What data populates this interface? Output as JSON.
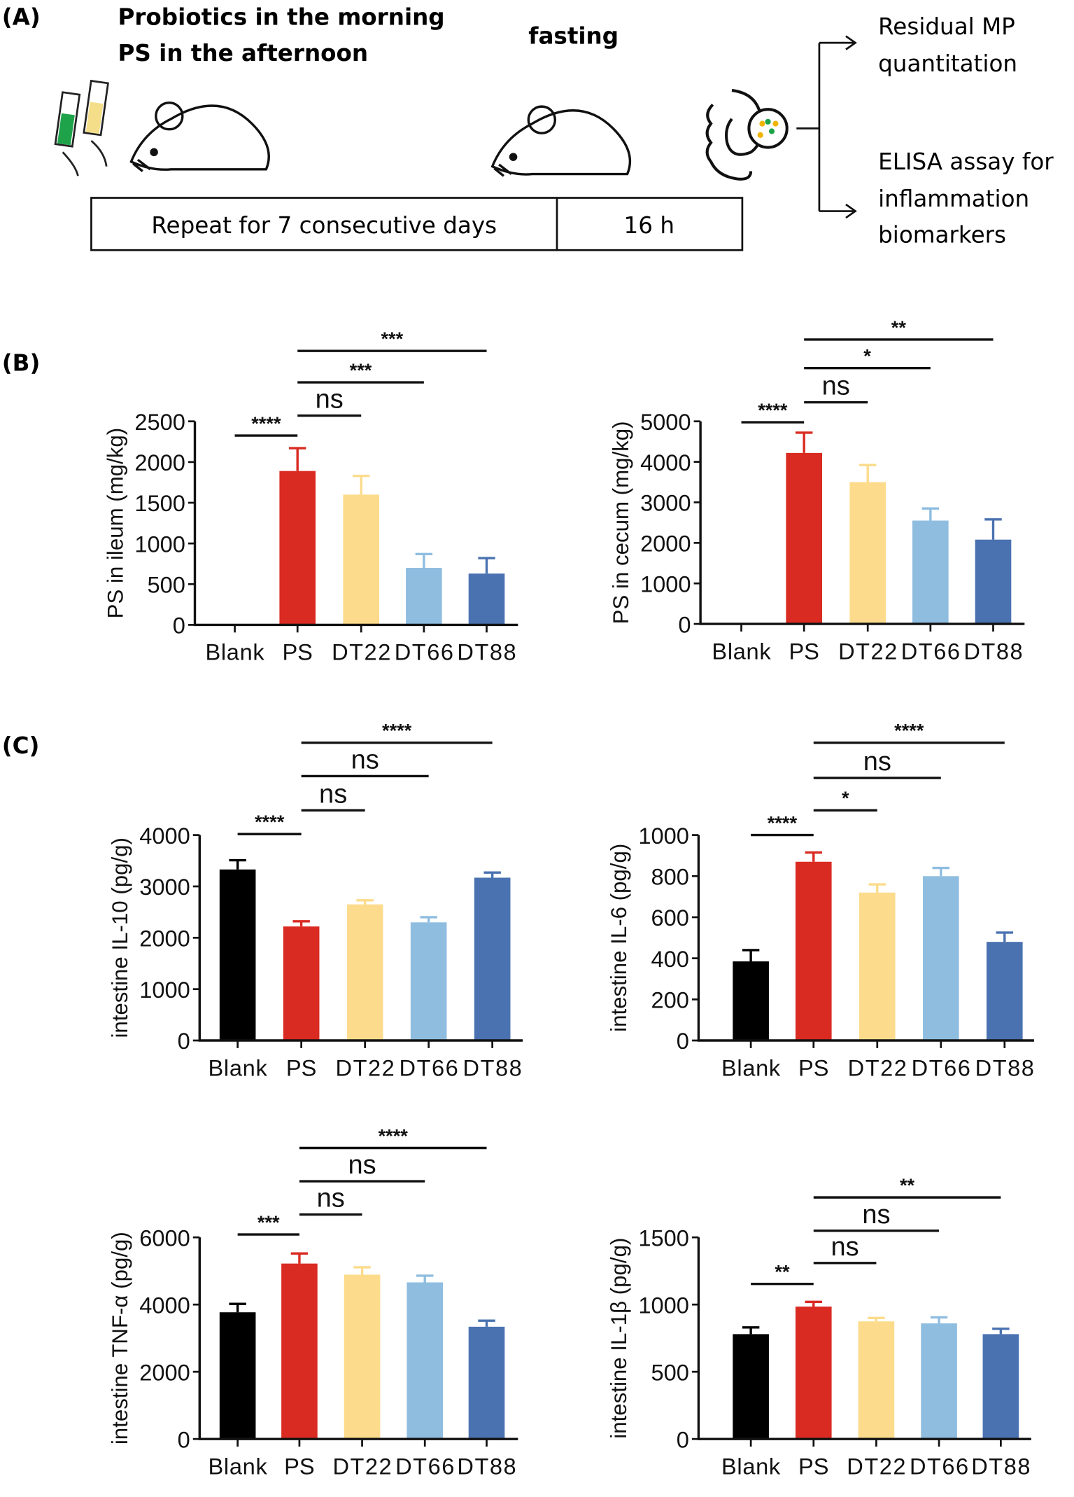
{
  "panel_a": {
    "label": "(A)",
    "line1": "Probiotics in the morning",
    "line2": "PS in the afternoon",
    "fasting": "fasting",
    "repeat": "Repeat for 7 consecutive days",
    "hours": "16 h",
    "out1a": "Residual MP",
    "out1b": "quantitation",
    "out2a": "ELISA assay for",
    "out2b": "inflammation",
    "out2c": "biomarkers"
  },
  "panel_b": {
    "label": "(B)"
  },
  "panel_c": {
    "label": "(C)"
  },
  "colors": {
    "Blank": "#000000",
    "PS": "#d92b22",
    "DT22": "#fcdc8c",
    "DT66": "#8fbde0",
    "DT88": "#4a72b0"
  },
  "chart_data": [
    {
      "type": "bar",
      "panel": "B",
      "ylabel": "PS in ileum (mg/kg)",
      "categories": [
        "Blank",
        "PS",
        "DT22",
        "DT66",
        "DT88"
      ],
      "values": [
        0,
        1890,
        1600,
        700,
        630
      ],
      "errors": [
        0,
        280,
        230,
        170,
        190
      ],
      "ylim": [
        0,
        2500
      ],
      "yticks": [
        0,
        500,
        1000,
        1500,
        2000,
        2500
      ],
      "comparisons": [
        {
          "from": 0,
          "to": 1,
          "label": "****"
        },
        {
          "from": 1,
          "to": 2,
          "label": "ns"
        },
        {
          "from": 1,
          "to": 3,
          "label": "***"
        },
        {
          "from": 1,
          "to": 4,
          "label": "***"
        }
      ]
    },
    {
      "type": "bar",
      "panel": "B",
      "ylabel": "PS in cecum (mg/kg)",
      "categories": [
        "Blank",
        "PS",
        "DT22",
        "DT66",
        "DT88"
      ],
      "values": [
        0,
        4220,
        3500,
        2550,
        2080
      ],
      "errors": [
        0,
        500,
        420,
        300,
        500
      ],
      "ylim": [
        0,
        5000
      ],
      "yticks": [
        0,
        1000,
        2000,
        3000,
        4000,
        5000
      ],
      "comparisons": [
        {
          "from": 0,
          "to": 1,
          "label": "****"
        },
        {
          "from": 1,
          "to": 2,
          "label": "ns"
        },
        {
          "from": 1,
          "to": 3,
          "label": "*"
        },
        {
          "from": 1,
          "to": 4,
          "label": "**"
        }
      ]
    },
    {
      "type": "bar",
      "panel": "C",
      "ylabel": "intestine IL-10 (pg/g)",
      "categories": [
        "Blank",
        "PS",
        "DT22",
        "DT66",
        "DT88"
      ],
      "values": [
        3330,
        2220,
        2650,
        2300,
        3170
      ],
      "errors": [
        180,
        100,
        80,
        100,
        100
      ],
      "ylim": [
        0,
        4000
      ],
      "yticks": [
        0,
        1000,
        2000,
        3000,
        4000
      ],
      "comparisons": [
        {
          "from": 0,
          "to": 1,
          "label": "****"
        },
        {
          "from": 1,
          "to": 2,
          "label": "ns"
        },
        {
          "from": 1,
          "to": 3,
          "label": "ns"
        },
        {
          "from": 1,
          "to": 4,
          "label": "****"
        }
      ]
    },
    {
      "type": "bar",
      "panel": "C",
      "ylabel": "intestine IL-6 (pg/g)",
      "categories": [
        "Blank",
        "PS",
        "DT22",
        "DT66",
        "DT88"
      ],
      "values": [
        385,
        870,
        720,
        800,
        480
      ],
      "errors": [
        55,
        45,
        40,
        40,
        45
      ],
      "ylim": [
        0,
        1000
      ],
      "yticks": [
        0,
        200,
        400,
        600,
        800,
        1000
      ],
      "comparisons": [
        {
          "from": 0,
          "to": 1,
          "label": "****"
        },
        {
          "from": 1,
          "to": 2,
          "label": "*"
        },
        {
          "from": 1,
          "to": 3,
          "label": "ns"
        },
        {
          "from": 1,
          "to": 4,
          "label": "****"
        }
      ]
    },
    {
      "type": "bar",
      "panel": "C",
      "ylabel": "intestine TNF-α (pg/g)",
      "categories": [
        "Blank",
        "PS",
        "DT22",
        "DT66",
        "DT88"
      ],
      "values": [
        3770,
        5220,
        4890,
        4660,
        3340
      ],
      "errors": [
        250,
        300,
        220,
        200,
        180
      ],
      "ylim": [
        0,
        6000
      ],
      "yticks": [
        0,
        2000,
        4000,
        6000
      ],
      "comparisons": [
        {
          "from": 0,
          "to": 1,
          "label": "***"
        },
        {
          "from": 1,
          "to": 2,
          "label": "ns"
        },
        {
          "from": 1,
          "to": 3,
          "label": "ns"
        },
        {
          "from": 1,
          "to": 4,
          "label": "****"
        }
      ]
    },
    {
      "type": "bar",
      "panel": "C",
      "ylabel": "intestine IL-1β (pg/g)",
      "categories": [
        "Blank",
        "PS",
        "DT22",
        "DT66",
        "DT88"
      ],
      "values": [
        780,
        985,
        875,
        860,
        780
      ],
      "errors": [
        50,
        35,
        25,
        45,
        40
      ],
      "ylim": [
        0,
        1500
      ],
      "yticks": [
        0,
        500,
        1000,
        1500
      ],
      "comparisons": [
        {
          "from": 0,
          "to": 1,
          "label": "**"
        },
        {
          "from": 1,
          "to": 2,
          "label": "ns"
        },
        {
          "from": 1,
          "to": 3,
          "label": "ns"
        },
        {
          "from": 1,
          "to": 4,
          "label": "**"
        }
      ]
    }
  ]
}
